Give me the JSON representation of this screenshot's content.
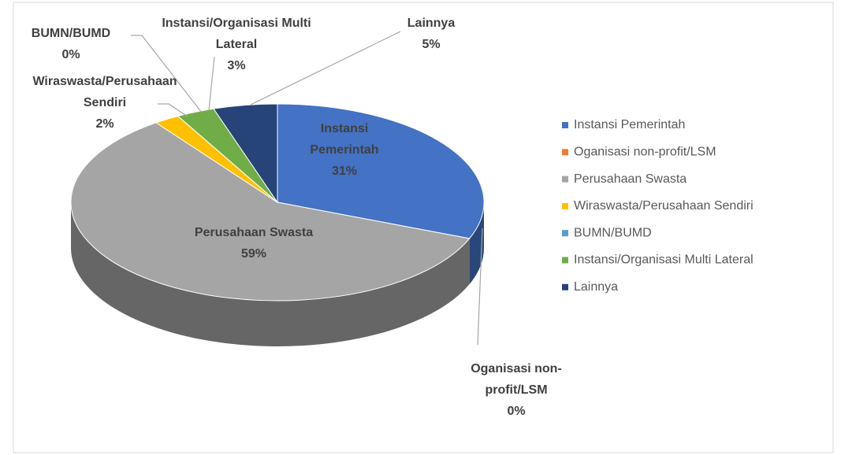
{
  "chart_data": {
    "type": "pie",
    "categories": [
      "Instansi Pemerintah",
      "Oganisasi non-profit/LSM",
      "Perusahaan Swasta",
      "Wiraswasta/Perusahaan Sendiri",
      "BUMN/BUMD",
      "Instansi/Organisasi Multi Lateral",
      "Lainnya"
    ],
    "values": [
      31,
      0,
      59,
      2,
      0,
      3,
      5
    ],
    "value_labels": [
      "31%",
      "0%",
      "59%",
      "2%",
      "0%",
      "3%",
      "5%"
    ],
    "colors": [
      "#4472c4",
      "#ed7d31",
      "#a5a5a5",
      "#ffc000",
      "#5b9bd5",
      "#70ad47",
      "#264478"
    ],
    "legend": "right"
  }
}
